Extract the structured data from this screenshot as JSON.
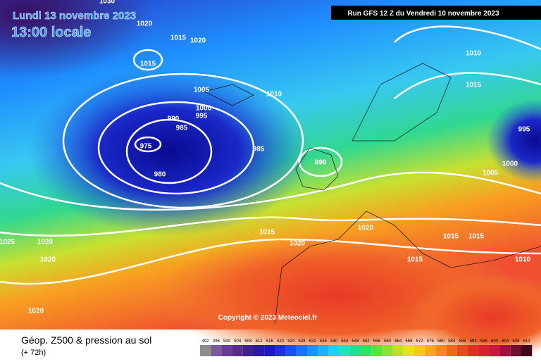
{
  "header": {
    "date": "Lundi 13 novembre 2023",
    "time": "13:00 locale",
    "run": "Run GFS 12 Z du Vendredi 10 novembre 2023"
  },
  "copyright": "Copyright © 2023 Meteociel.fr",
  "footer": {
    "title": "Géop. Z500 & pression au sol",
    "lead": "(+ 72h)"
  },
  "isobar_labels": [
    "1030",
    "1020",
    "1015",
    "1020",
    "1015",
    "1010",
    "1005",
    "1010",
    "1015",
    "1000",
    "995",
    "990",
    "985",
    "995",
    "975",
    "985",
    "990",
    "1000",
    "980",
    "1005",
    "1015",
    "1020",
    "1015",
    "1015",
    "1025",
    "1020",
    "1020",
    "1020",
    "1015",
    "1010",
    "1020"
  ],
  "legend": [
    492,
    496,
    500,
    504,
    508,
    512,
    516,
    520,
    524,
    528,
    532,
    536,
    540,
    544,
    548,
    552,
    556,
    560,
    564,
    568,
    572,
    576,
    580,
    584,
    588,
    592,
    596,
    600,
    604,
    608,
    612
  ]
}
